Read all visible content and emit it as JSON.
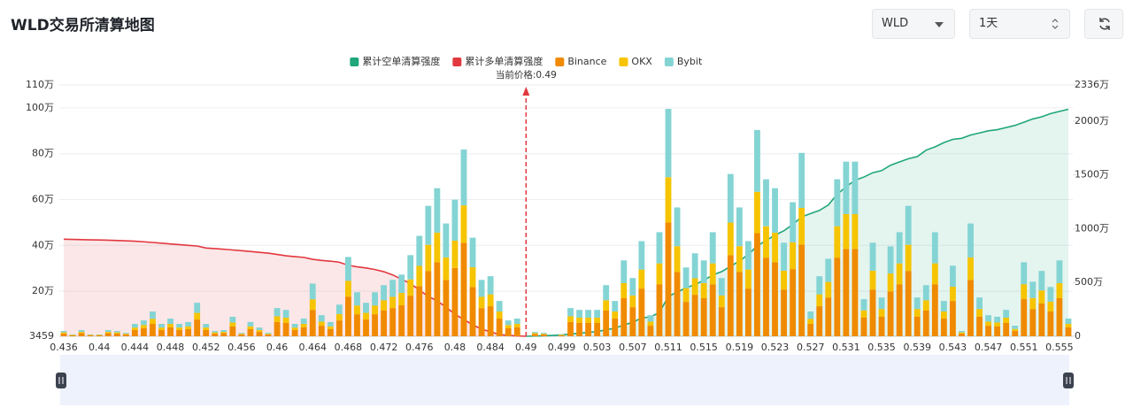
{
  "header": {
    "title": "WLD交易所清算地图",
    "symbol": "WLD",
    "period": "1天"
  },
  "chart_data": {
    "type": "bar",
    "categories": [
      "0.436",
      null,
      null,
      null,
      "0.44",
      null,
      null,
      null,
      "0.444",
      null,
      null,
      null,
      "0.448",
      null,
      null,
      null,
      "0.452",
      null,
      null,
      null,
      "0.456",
      null,
      null,
      null,
      "0.46",
      null,
      null,
      null,
      "0.464",
      null,
      null,
      null,
      "0.468",
      null,
      null,
      null,
      "0.472",
      null,
      null,
      null,
      "0.476",
      null,
      null,
      null,
      "0.48",
      null,
      null,
      null,
      "0.484",
      null,
      null,
      null,
      "0.49",
      null,
      null,
      null,
      "0.499",
      null,
      null,
      null,
      "0.503",
      null,
      null,
      null,
      "0.507",
      null,
      null,
      null,
      "0.511",
      null,
      null,
      null,
      "0.515",
      null,
      null,
      null,
      "0.519",
      null,
      null,
      null,
      "0.523",
      null,
      null,
      null,
      "0.527",
      null,
      null,
      null,
      "0.531",
      null,
      null,
      null,
      "0.535",
      null,
      null,
      null,
      "0.539",
      null,
      null,
      null,
      "0.543",
      null,
      null,
      null,
      "0.547",
      null,
      null,
      null,
      "0.551",
      null,
      null,
      null,
      "0.555",
      null
    ],
    "series": [
      {
        "name": "累计空单清算强度",
        "type": "line",
        "axis": "y2",
        "color": "#1fa67a",
        "values": [
          null,
          null,
          null,
          null,
          null,
          null,
          null,
          null,
          null,
          null,
          null,
          null,
          null,
          null,
          null,
          null,
          null,
          null,
          null,
          null,
          null,
          null,
          null,
          null,
          null,
          null,
          null,
          null,
          null,
          null,
          null,
          null,
          null,
          null,
          null,
          null,
          null,
          null,
          null,
          null,
          null,
          null,
          null,
          null,
          null,
          null,
          null,
          null,
          null,
          null,
          null,
          null,
          0,
          20000,
          50000,
          80000,
          120000,
          200000,
          280000,
          360000,
          440000,
          600000,
          750000,
          1050000,
          1300000,
          1700000,
          1800000,
          2200000,
          3700000,
          4100000,
          4500000,
          4800000,
          5200000,
          5700000,
          6000000,
          6500000,
          7000000,
          7600000,
          8400000,
          8900000,
          9400000,
          9800000,
          10400000,
          11100000,
          11400000,
          11700000,
          12200000,
          13200000,
          13900000,
          14500000,
          14800000,
          15200000,
          15400000,
          15900000,
          16200000,
          16500000,
          16700000,
          17300000,
          17600000,
          18000000,
          18300000,
          18400000,
          18700000,
          18900000,
          19100000,
          19200000,
          19400000,
          19600000,
          19900000,
          20200000,
          20400000,
          20700000,
          20900000,
          21100000
        ]
      },
      {
        "name": "累计多单清算强度",
        "type": "line",
        "axis": "y2",
        "color": "#e2383f",
        "values": [
          9020000,
          9000000,
          8980000,
          8960000,
          8950000,
          8930000,
          8900000,
          8870000,
          8840000,
          8780000,
          8720000,
          8650000,
          8580000,
          8520000,
          8450000,
          8390000,
          8200000,
          8150000,
          8090000,
          8020000,
          7950000,
          7880000,
          7800000,
          7730000,
          7600000,
          7480000,
          7400000,
          7330000,
          7150000,
          7050000,
          6980000,
          6880000,
          6600000,
          6450000,
          6350000,
          6200000,
          6000000,
          5700000,
          5300000,
          4900000,
          4300000,
          3700000,
          3300000,
          2700000,
          2050000,
          1560000,
          1070000,
          660000,
          410000,
          160000,
          80000,
          30000,
          0,
          null,
          null,
          null,
          null,
          null,
          null,
          null,
          null,
          null,
          null,
          null,
          null,
          null,
          null,
          null,
          null,
          null,
          null,
          null,
          null,
          null,
          null,
          null,
          null,
          null,
          null,
          null,
          null,
          null,
          null,
          null,
          null,
          null,
          null,
          null,
          null,
          null,
          null,
          null,
          null,
          null,
          null,
          null,
          null,
          null,
          null,
          null,
          null,
          null,
          null,
          null,
          null,
          null,
          null,
          null,
          null,
          null,
          null,
          null,
          null,
          null
        ]
      },
      {
        "name": "Binance",
        "type": "bar",
        "color": "#f08a00",
        "values": [
          12000,
          4000,
          14000,
          4000,
          4000,
          14000,
          12000,
          8000,
          27000,
          35000,
          54000,
          27000,
          39000,
          27000,
          31000,
          73000,
          27000,
          12000,
          14000,
          43000,
          8000,
          31000,
          19000,
          8000,
          62000,
          58000,
          27000,
          39000,
          115000,
          46000,
          31000,
          69000,
          173000,
          96000,
          73000,
          96000,
          112000,
          123000,
          135000,
          177000,
          219000,
          285000,
          323000,
          246000,
          298000,
          408000,
          215000,
          123000,
          131000,
          77000,
          35000,
          39000,
          0,
          10000,
          8000,
          0,
          4000,
          62000,
          58000,
          58000,
          58000,
          112000,
          77000,
          166000,
          127000,
          208000,
          46000,
          227000,
          496000,
          281000,
          150000,
          181000,
          166000,
          227000,
          127000,
          354000,
          281000,
          208000,
          450000,
          343000,
          323000,
          204000,
          293000,
          400000,
          54000,
          131000,
          169000,
          343000,
          381000,
          381000,
          81000,
          204000,
          85000,
          196000,
          227000,
          285000,
          85000,
          112000,
          227000,
          77000,
          154000,
          12000,
          246000,
          85000,
          46000,
          43000,
          58000,
          23000,
          162000,
          119000,
          143000,
          108000,
          166000,
          39000
        ]
      },
      {
        "name": "OKX",
        "type": "bar",
        "color": "#f6c400",
        "values": [
          5000,
          2000,
          5000,
          2000,
          2000,
          5000,
          5000,
          3000,
          11000,
          14000,
          22000,
          11000,
          15000,
          11000,
          12000,
          29000,
          11000,
          5000,
          5000,
          17000,
          3000,
          12000,
          8000,
          3000,
          25000,
          23000,
          11000,
          15000,
          46000,
          18000,
          12000,
          28000,
          69000,
          38000,
          29000,
          38000,
          45000,
          49000,
          54000,
          71000,
          88000,
          114000,
          129000,
          98000,
          119000,
          163000,
          86000,
          49000,
          52000,
          31000,
          14000,
          15000,
          0,
          4000,
          3000,
          0,
          2000,
          25000,
          23000,
          23000,
          23000,
          45000,
          31000,
          66000,
          51000,
          83000,
          18000,
          91000,
          198000,
          112000,
          60000,
          72000,
          66000,
          91000,
          51000,
          142000,
          112000,
          83000,
          180000,
          137000,
          129000,
          82000,
          117000,
          160000,
          22000,
          52000,
          68000,
          137000,
          152000,
          152000,
          32000,
          82000,
          34000,
          78000,
          91000,
          114000,
          34000,
          45000,
          91000,
          31000,
          62000,
          5000,
          98000,
          34000,
          18000,
          17000,
          23000,
          9000,
          65000,
          48000,
          57000,
          43000,
          66000,
          15000
        ]
      },
      {
        "name": "Bybit",
        "type": "bar",
        "color": "#84d4d4",
        "values": [
          6000,
          2000,
          8000,
          2000,
          2000,
          8000,
          6000,
          4000,
          16000,
          20000,
          32000,
          16000,
          23000,
          16000,
          19000,
          44000,
          16000,
          6000,
          8000,
          25000,
          4000,
          19000,
          11000,
          4000,
          36000,
          34000,
          16000,
          23000,
          69000,
          28000,
          19000,
          41000,
          104000,
          58000,
          44000,
          58000,
          66000,
          74000,
          80000,
          106000,
          131000,
          170000,
          194000,
          148000,
          179000,
          244000,
          129000,
          74000,
          79000,
          46000,
          20000,
          23000,
          0,
          5000,
          4000,
          0,
          2000,
          36000,
          34000,
          34000,
          34000,
          66000,
          46000,
          99000,
          76000,
          124000,
          28000,
          136000,
          298000,
          169000,
          90000,
          109000,
          99000,
          136000,
          76000,
          212000,
          169000,
          124000,
          270000,
          205000,
          194000,
          122000,
          175000,
          240000,
          32000,
          79000,
          101000,
          205000,
          229000,
          229000,
          49000,
          122000,
          50000,
          118000,
          136000,
          170000,
          50000,
          66000,
          136000,
          46000,
          92000,
          6000,
          148000,
          50000,
          28000,
          25000,
          34000,
          14000,
          96000,
          71000,
          85000,
          64000,
          99000,
          23000
        ]
      }
    ],
    "ylim": [
      3459,
      1100000
    ],
    "yticks": [
      3459,
      {
        "value": 200000,
        "label": "20万"
      },
      {
        "value": 400000,
        "label": "40万"
      },
      {
        "value": 600000,
        "label": "60万"
      },
      {
        "value": 800000,
        "label": "80万"
      },
      {
        "value": 1000000,
        "label": "100万"
      },
      {
        "value": 1100000,
        "label": "110万"
      }
    ],
    "y2lim": [
      0,
      23360000
    ],
    "y2ticks": [
      0,
      {
        "value": 5000000,
        "label": "500万"
      },
      {
        "value": 10000000,
        "label": "1000万"
      },
      {
        "value": 15000000,
        "label": "1500万"
      },
      {
        "value": 20000000,
        "label": "2000万"
      },
      {
        "value": 23360000,
        "label": "2336万"
      }
    ],
    "grid": true,
    "legend": "top",
    "annotation": {
      "text": "当前价格:0.49",
      "x": "0.49",
      "color": "#e2383f"
    }
  }
}
